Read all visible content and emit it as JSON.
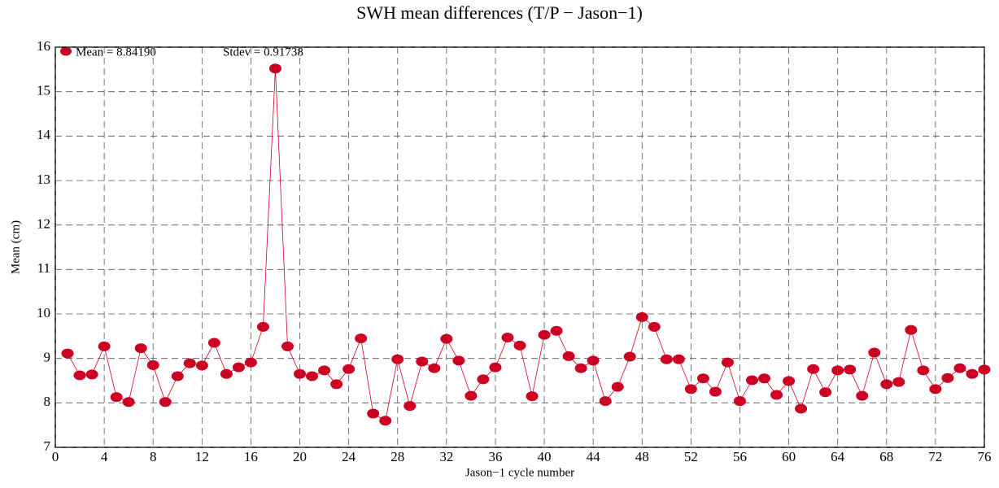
{
  "chart_data": {
    "type": "line",
    "title": "SWH mean differences (T/P − Jason−1)",
    "x_label": "Jason−1 cycle number",
    "y_label": "Mean (cm)",
    "annotations": [
      "Mean = 8.84190",
      "Stdev = 0.91738"
    ],
    "x": [
      1,
      2,
      3,
      4,
      5,
      6,
      7,
      8,
      9,
      10,
      11,
      12,
      13,
      14,
      15,
      16,
      17,
      18,
      19,
      20,
      21,
      22,
      23,
      24,
      25,
      26,
      27,
      28,
      29,
      30,
      31,
      32,
      33,
      34,
      35,
      36,
      37,
      38,
      39,
      40,
      41,
      42,
      43,
      44,
      45,
      46,
      47,
      48,
      49,
      50,
      51,
      52,
      53,
      54,
      55,
      56,
      57,
      58,
      59,
      60,
      61,
      62,
      63,
      64,
      65,
      66,
      67,
      68,
      69,
      70,
      71,
      72,
      73,
      74,
      75,
      76
    ],
    "series": [
      {
        "color": "#cc0022",
        "values": [
          9.11,
          8.62,
          8.64,
          9.27,
          8.13,
          8.02,
          9.23,
          8.85,
          8.02,
          8.6,
          8.89,
          8.84,
          9.35,
          8.65,
          8.8,
          8.91,
          9.71,
          15.52,
          9.27,
          8.65,
          8.6,
          8.73,
          8.42,
          8.76,
          9.45,
          7.76,
          7.6,
          8.98,
          7.93,
          8.93,
          8.78,
          9.44,
          8.95,
          8.16,
          8.53,
          8.8,
          9.47,
          9.29,
          8.15,
          9.53,
          9.62,
          9.05,
          8.78,
          8.95,
          8.04,
          8.36,
          9.04,
          9.93,
          9.71,
          8.98,
          8.98,
          8.31,
          8.55,
          8.25,
          8.91,
          8.04,
          8.51,
          8.55,
          8.18,
          8.49,
          7.87,
          8.76,
          8.24,
          8.73,
          8.75,
          8.16,
          9.13,
          8.42,
          8.47,
          9.64,
          8.73,
          8.31,
          8.56,
          8.78,
          8.65,
          8.75
        ]
      }
    ],
    "xlim": [
      0,
      76
    ],
    "xticks": [
      0,
      4,
      8,
      12,
      16,
      20,
      24,
      28,
      32,
      36,
      40,
      44,
      48,
      52,
      56,
      60,
      64,
      68,
      72,
      76
    ],
    "ylim": [
      7,
      16
    ],
    "yticks": [
      7,
      8,
      9,
      10,
      11,
      12,
      13,
      14,
      15,
      16
    ],
    "grid": true
  }
}
